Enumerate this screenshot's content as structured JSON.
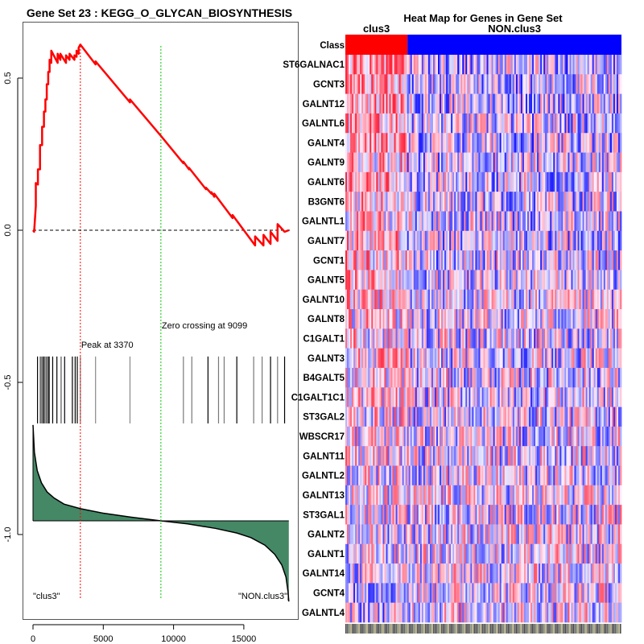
{
  "chart_data": [
    {
      "type": "line",
      "title": "Gene Set  23 : KEGG_O_GLYCAN_BIOSYNTHESIS",
      "xlabel": "",
      "ylabel": "",
      "xlim": [
        -800,
        18800
      ],
      "ylim": [
        -1.28,
        0.68
      ],
      "x_ticks": [
        0,
        5000,
        10000,
        15000
      ],
      "x_tick_labels": [
        "0",
        "5000",
        "10000",
        "15000"
      ],
      "y_ticks": [
        0.5,
        0.0,
        -0.5,
        -1.0
      ],
      "y_tick_labels": [
        "0.5",
        "0.0",
        "-0.5",
        "-1.0"
      ],
      "grid": false,
      "series": [
        {
          "name": "running-enrichment-score",
          "color": "#ff0000",
          "x": [
            0,
            80,
            200,
            200,
            350,
            350,
            500,
            500,
            650,
            650,
            780,
            780,
            880,
            880,
            980,
            980,
            1080,
            1080,
            1180,
            1180,
            1300,
            1300,
            1750,
            1750,
            1950,
            1950,
            2350,
            2350,
            2600,
            2600,
            2950,
            2950,
            3100,
            3100,
            3250,
            3250,
            3370,
            4450,
            4450,
            6900,
            6900,
            9099,
            10700,
            10700,
            11100,
            11100,
            12300,
            12300,
            12700,
            12700,
            12900,
            12900,
            14200,
            14200,
            15800,
            15800,
            16400,
            16400,
            16900,
            16900,
            17400,
            17400,
            17900,
            18200
          ],
          "y": [
            0.0,
            -0.005,
            0.08,
            0.155,
            0.15,
            0.2,
            0.2,
            0.28,
            0.28,
            0.34,
            0.34,
            0.39,
            0.39,
            0.43,
            0.43,
            0.48,
            0.48,
            0.52,
            0.52,
            0.56,
            0.55,
            0.59,
            0.55,
            0.58,
            0.56,
            0.58,
            0.55,
            0.575,
            0.56,
            0.58,
            0.56,
            0.575,
            0.57,
            0.59,
            0.58,
            0.6,
            0.61,
            0.545,
            0.555,
            0.42,
            0.43,
            0.31,
            0.22,
            0.225,
            0.2,
            0.205,
            0.135,
            0.14,
            0.12,
            0.125,
            0.11,
            0.12,
            0.04,
            0.05,
            -0.05,
            -0.02,
            -0.05,
            -0.015,
            -0.045,
            -0.005,
            -0.035,
            0.02,
            -0.005,
            0.0
          ]
        }
      ],
      "baseline": {
        "y": 0.0,
        "style": "dashed",
        "color": "#000000"
      },
      "annotations": [
        {
          "text": "Peak at 3370",
          "x": 3370,
          "line_color": "#ff0000"
        },
        {
          "text": "Zero crossing at 9099",
          "x": 9099,
          "line_color": "#00cc00"
        },
        {
          "text": "\"clus3\"",
          "position": "bottom-left"
        },
        {
          "text": "\"NON.clus3\"",
          "position": "bottom-right"
        }
      ],
      "gene_hits": {
        "y_range": [
          -0.415,
          -0.635
        ],
        "positions": [
          320,
          520,
          620,
          720,
          780,
          850,
          960,
          1020,
          1100,
          1150,
          1400,
          1700,
          2000,
          2250,
          2800,
          3000,
          3150,
          3370,
          4450,
          6900,
          10700,
          11300,
          12450,
          13200,
          13600,
          14500,
          15700,
          16300,
          16900,
          17400,
          17900
        ],
        "colors": [
          "#000000",
          "#333333",
          "#555555",
          "#000000",
          "#888888",
          "#333333",
          "#555555",
          "#777777",
          "#444444",
          "#000000",
          "#000000",
          "#000000",
          "#555555",
          "#000000",
          "#000000",
          "#000000",
          "#000000",
          "#777777",
          "#888888",
          "#888888",
          "#777777",
          "#777777",
          "#000000",
          "#777777",
          "#777777",
          "#000000",
          "#777777",
          "#777777",
          "#000000",
          "#777777",
          "#000000"
        ]
      },
      "ranked_metric": {
        "fill_color": "#448866",
        "baseline_y": -0.955,
        "x": [
          0,
          100,
          300,
          600,
          1000,
          1500,
          2200,
          3370,
          5000,
          7000,
          9099,
          11000,
          13000,
          14500,
          15500,
          16500,
          17200,
          17700,
          18000,
          18150,
          18200
        ],
        "y": [
          -0.64,
          -0.73,
          -0.79,
          -0.83,
          -0.86,
          -0.88,
          -0.9,
          -0.915,
          -0.93,
          -0.943,
          -0.955,
          -0.965,
          -0.98,
          -0.995,
          -1.01,
          -1.035,
          -1.065,
          -1.1,
          -1.14,
          -1.19,
          -1.22
        ]
      }
    },
    {
      "type": "heatmap",
      "title": "Heat Map for Genes in Gene Set",
      "class_row_label": "Class",
      "classes": [
        {
          "name": "clus3",
          "color": "#ff0000",
          "fraction": 0.225
        },
        {
          "name": "NON.clus3",
          "color": "#0000ff",
          "fraction": 0.775
        }
      ],
      "genes": [
        "ST6GALNAC1",
        "GCNT3",
        "GALNT12",
        "GALNTL6",
        "GALNT4",
        "GALNT9",
        "GALNT6",
        "B3GNT6",
        "GALNTL1",
        "GALNT7",
        "GCNT1",
        "GALNT5",
        "GALNT10",
        "GALNT8",
        "C1GALT1",
        "GALNT3",
        "B4GALT5",
        "C1GALT1C1",
        "ST3GAL2",
        "WBSCR17",
        "GALNT11",
        "GALNTL2",
        "GALNT13",
        "ST3GAL1",
        "GALNT2",
        "GALNT1",
        "GALNT14",
        "GCNT4",
        "GALNTL4"
      ],
      "n_samples": 170,
      "color_scale": {
        "low": "#0000ff",
        "mid": "#eeeeff",
        "high": "#ff0000"
      },
      "row_bias": [
        0.55,
        0.45,
        0.42,
        0.4,
        0.48,
        0.3,
        0.38,
        0.28,
        0.25,
        0.35,
        0.3,
        0.22,
        0.2,
        0.18,
        0.15,
        0.2,
        0.18,
        0.15,
        0.1,
        0.1,
        0.08,
        0.05,
        0.02,
        0.0,
        -0.02,
        -0.05,
        -0.08,
        -0.1,
        -0.12
      ]
    }
  ]
}
